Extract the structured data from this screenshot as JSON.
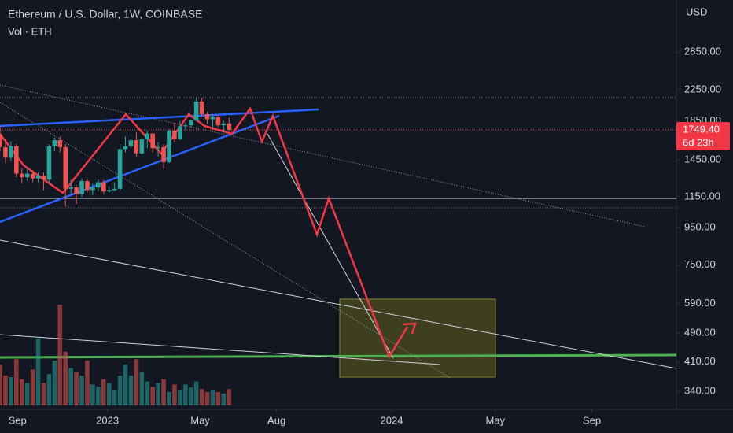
{
  "chart_data": {
    "type": "candlestick",
    "title": "Ethereum / U.S. Dollar, 1W, COINBASE",
    "volume_title": "Vol · ETH",
    "currency": "USD",
    "x": [
      0,
      1,
      2,
      3,
      4,
      5,
      6,
      7,
      8,
      9,
      10,
      11,
      12,
      13,
      14,
      15,
      16,
      17,
      18,
      19,
      20,
      21,
      22,
      23,
      24,
      25,
      26,
      27,
      28,
      29,
      30,
      31,
      32,
      33,
      34,
      35,
      36,
      37,
      38,
      39,
      40,
      41,
      42
    ],
    "open": [
      1700,
      1570,
      1470,
      1580,
      1330,
      1300,
      1330,
      1290,
      1310,
      1280,
      1580,
      1640,
      1570,
      1210,
      1220,
      1170,
      1270,
      1200,
      1220,
      1260,
      1190,
      1200,
      1210,
      1550,
      1580,
      1640,
      1510,
      1650,
      1710,
      1560,
      1570,
      1430,
      1740,
      1650,
      1790,
      1800,
      1860,
      2090,
      1930,
      1870,
      1900,
      1800,
      1820
    ],
    "high": [
      1790,
      1650,
      1630,
      1600,
      1380,
      1380,
      1360,
      1340,
      1340,
      1600,
      1670,
      1680,
      1600,
      1280,
      1240,
      1290,
      1290,
      1250,
      1280,
      1280,
      1230,
      1260,
      1600,
      1680,
      1700,
      1720,
      1660,
      1740,
      1720,
      1620,
      1600,
      1760,
      1830,
      1850,
      1830,
      1870,
      2140,
      2140,
      1960,
      1930,
      1920,
      1850,
      1890
    ],
    "low": [
      1530,
      1420,
      1440,
      1300,
      1250,
      1270,
      1260,
      1260,
      1200,
      1250,
      1530,
      1520,
      1080,
      1170,
      1100,
      1150,
      1180,
      1160,
      1190,
      1170,
      1180,
      1190,
      1200,
      1520,
      1560,
      1480,
      1500,
      1560,
      1520,
      1480,
      1370,
      1420,
      1620,
      1640,
      1750,
      1780,
      1840,
      1900,
      1820,
      1770,
      1780,
      1720,
      1740
    ],
    "close": [
      1570,
      1470,
      1580,
      1330,
      1300,
      1330,
      1290,
      1310,
      1280,
      1580,
      1640,
      1570,
      1210,
      1220,
      1170,
      1270,
      1200,
      1220,
      1260,
      1190,
      1200,
      1210,
      1550,
      1580,
      1640,
      1510,
      1650,
      1710,
      1560,
      1570,
      1430,
      1740,
      1650,
      1790,
      1800,
      1860,
      2090,
      1930,
      1870,
      1900,
      1800,
      1820,
      1749.4
    ],
    "volume": [
      55,
      40,
      38,
      62,
      35,
      30,
      48,
      90,
      30,
      42,
      60,
      135,
      72,
      50,
      45,
      40,
      60,
      28,
      25,
      35,
      30,
      20,
      40,
      55,
      40,
      62,
      45,
      32,
      25,
      30,
      35,
      18,
      28,
      20,
      28,
      24,
      32,
      22,
      18,
      20,
      18,
      16,
      22
    ],
    "last_price": 1749.4,
    "last_price_label": "1749.40",
    "countdown": "6d 23h",
    "up_color": "#26a69a",
    "down_color": "#ef5350",
    "log_scale": true,
    "ylim": [
      304,
      3945
    ],
    "yticks": [
      {
        "value": 2850,
        "label": "2850.00"
      },
      {
        "value": 2250,
        "label": "2250.00"
      },
      {
        "value": 1850,
        "label": "1850.00"
      },
      {
        "value": 1450,
        "label": "1450.00"
      },
      {
        "value": 1150,
        "label": "1150.00"
      },
      {
        "value": 950,
        "label": "950.00"
      },
      {
        "value": 750,
        "label": "750.00"
      },
      {
        "value": 590,
        "label": "590.00"
      },
      {
        "value": 490,
        "label": "490.00"
      },
      {
        "value": 410,
        "label": "410.00"
      },
      {
        "value": 340,
        "label": "340.00"
      }
    ],
    "xlim": [
      0,
      124
    ],
    "xticks": [
      {
        "value": 3.2,
        "label": "Sep"
      },
      {
        "value": 19.7,
        "label": "2023"
      },
      {
        "value": 36.7,
        "label": "May"
      },
      {
        "value": 50.7,
        "label": "Aug"
      },
      {
        "value": 71.8,
        "label": "2024"
      },
      {
        "value": 90.8,
        "label": "May"
      },
      {
        "value": 108.5,
        "label": "Sep"
      }
    ]
  }
}
